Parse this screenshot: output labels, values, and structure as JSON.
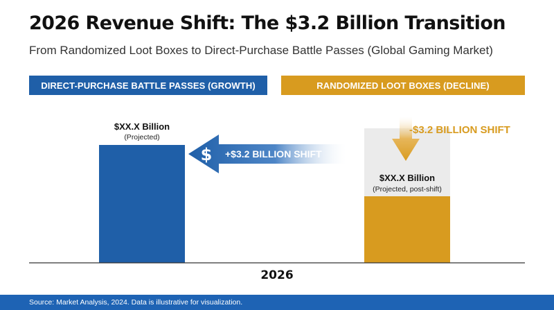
{
  "title": "2026 Revenue Shift: The $3.2 Billion Transition",
  "subtitle": "From Randomized Loot Boxes to Direct-Purchase Battle Passes (Global Gaming Market)",
  "source": "Source: Market Analysis, 2024. Data is illustrative for visualization.",
  "colors": {
    "blue": "#1f5fa8",
    "gold": "#d89b1f",
    "ghost": "#ebebeb",
    "footer": "#1e63b4",
    "axis": "#333333"
  },
  "chart_data": {
    "type": "bar",
    "x": [
      "2026"
    ],
    "xlabel": "2026",
    "series": [
      {
        "name": "DIRECT-PURCHASE BATTLE PASSES (GROWTH)",
        "value_label": "$XX.X Billion",
        "note": "(Projected)",
        "relative_height": 0.85
      },
      {
        "name": "RANDOMIZED LOOT BOXES (DECLINE)",
        "value_label": "$XX.X Billion",
        "note": "(Projected, post-shift)",
        "relative_height": 0.48,
        "pre_shift_relative_height": 0.97
      }
    ],
    "annotations": {
      "growth_shift": "+$3.2 BILLION SHIFT",
      "decline_shift": "-$3.2 BILLION SHIFT",
      "currency_symbol": "$"
    },
    "grid": false,
    "legend": "top"
  }
}
